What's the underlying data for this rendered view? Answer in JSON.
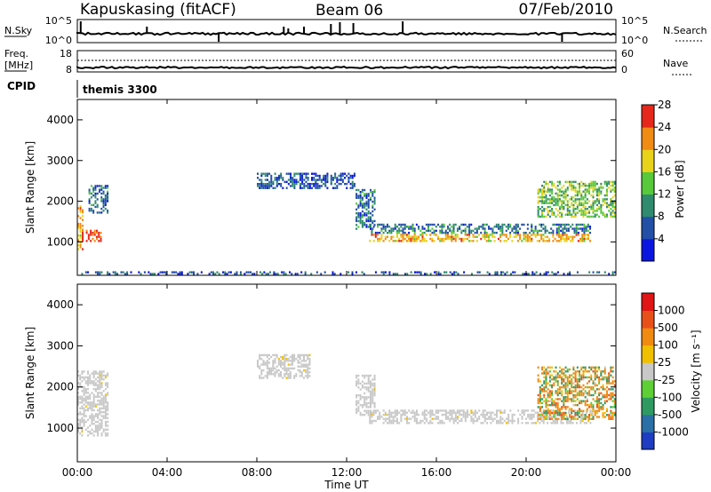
{
  "header": {
    "station": "Kapuskasing (fitACF)",
    "beam": "Beam 06",
    "date": "07/Feb/2010"
  },
  "strip_labels": {
    "nsky": "N.Sky",
    "nsky_ticks": [
      "10^5",
      "10^0"
    ],
    "nsearch": "N.Search",
    "nsearch_ticks": [
      "10^5",
      "10^0"
    ],
    "freq": "Freq.",
    "freq_unit": "[MHz]",
    "freq_ticks": [
      "18",
      "8"
    ],
    "nave": "Nave",
    "nave_ticks": [
      "60",
      "0"
    ],
    "cpid_label": "CPID",
    "cpid_value": "themis 3300"
  },
  "panels": {
    "ylabel": "Slant Range [km]",
    "yticks": [
      "1000",
      "2000",
      "3000",
      "4000"
    ],
    "xticks": [
      "00:00",
      "04:00",
      "08:00",
      "12:00",
      "16:00",
      "20:00",
      "00:00"
    ],
    "xlabel": "Time UT"
  },
  "colorbars": {
    "power": {
      "title": "Power [dB]",
      "ticks": [
        "4",
        "8",
        "12",
        "16",
        "20",
        "24",
        "28"
      ],
      "colors": [
        "#0a16e0",
        "#234fa6",
        "#2f8a6e",
        "#57c93a",
        "#e8d21a",
        "#f08b14",
        "#e5281b"
      ]
    },
    "velocity": {
      "title": "Velocity [m s⁻¹]",
      "ticks": [
        "1000",
        "500",
        "100",
        "25",
        "-25",
        "-100",
        "-500",
        "-1000"
      ],
      "colors": [
        "#1e3dc2",
        "#2a6fa6",
        "#2e9a62",
        "#5ecf35",
        "#c8c8c8",
        "#f0c000",
        "#f08a10",
        "#e8501a",
        "#e01515"
      ]
    }
  },
  "chart_data": [
    {
      "type": "line",
      "name": "N.Sky / N.Search",
      "x_range_hours": [
        0,
        24
      ],
      "y_scale": "log",
      "y_ticks": [
        "10^0",
        "10^5"
      ]
    },
    {
      "type": "line",
      "name": "Freq. / Nave",
      "x_range_hours": [
        0,
        24
      ],
      "ylim_left": [
        8,
        18
      ],
      "ylim_right": [
        0,
        60
      ]
    },
    {
      "type": "heatmap",
      "quantity": "Power [dB]",
      "x_range_hours": [
        0,
        24
      ],
      "ylim": [
        180,
        4500
      ],
      "color_range": [
        0,
        30
      ],
      "echo_regions": [
        {
          "t": [
            0.0,
            0.3
          ],
          "range": [
            800,
            1900
          ],
          "power": 20
        },
        {
          "t": [
            0.2,
            1.1
          ],
          "range": [
            1000,
            1300
          ],
          "power": 26
        },
        {
          "t": [
            0.5,
            1.4
          ],
          "range": [
            1700,
            2400
          ],
          "power": 8
        },
        {
          "t": [
            8.0,
            12.4
          ],
          "range": [
            2300,
            2700
          ],
          "power": 6
        },
        {
          "t": [
            12.4,
            13.3
          ],
          "range": [
            1300,
            2300
          ],
          "power": 8
        },
        {
          "t": [
            13.0,
            22.9
          ],
          "range": [
            1000,
            1200
          ],
          "power": 20
        },
        {
          "t": [
            13.0,
            22.9
          ],
          "range": [
            1200,
            1450
          ],
          "power": 8
        },
        {
          "t": [
            20.5,
            24.0
          ],
          "range": [
            1600,
            2500
          ],
          "power": 14
        },
        {
          "t": [
            0.0,
            24.0
          ],
          "range": [
            200,
            280
          ],
          "power": 6
        }
      ]
    },
    {
      "type": "heatmap",
      "quantity": "Velocity [m s-1]",
      "x_range_hours": [
        0,
        24
      ],
      "ylim": [
        180,
        4500
      ],
      "color_range": [
        -1000,
        1000
      ],
      "echo_regions": [
        {
          "t": [
            0.0,
            1.4
          ],
          "range": [
            800,
            2400
          ],
          "velocity": 0
        },
        {
          "t": [
            8.0,
            10.4
          ],
          "range": [
            2200,
            2800
          ],
          "velocity": 0
        },
        {
          "t": [
            12.4,
            13.3
          ],
          "range": [
            1300,
            2300
          ],
          "velocity": 0
        },
        {
          "t": [
            13.0,
            23.0
          ],
          "range": [
            1100,
            1450
          ],
          "velocity": 0
        },
        {
          "t": [
            20.5,
            24.0
          ],
          "range": [
            1200,
            2500
          ],
          "velocity": -150
        }
      ]
    }
  ]
}
